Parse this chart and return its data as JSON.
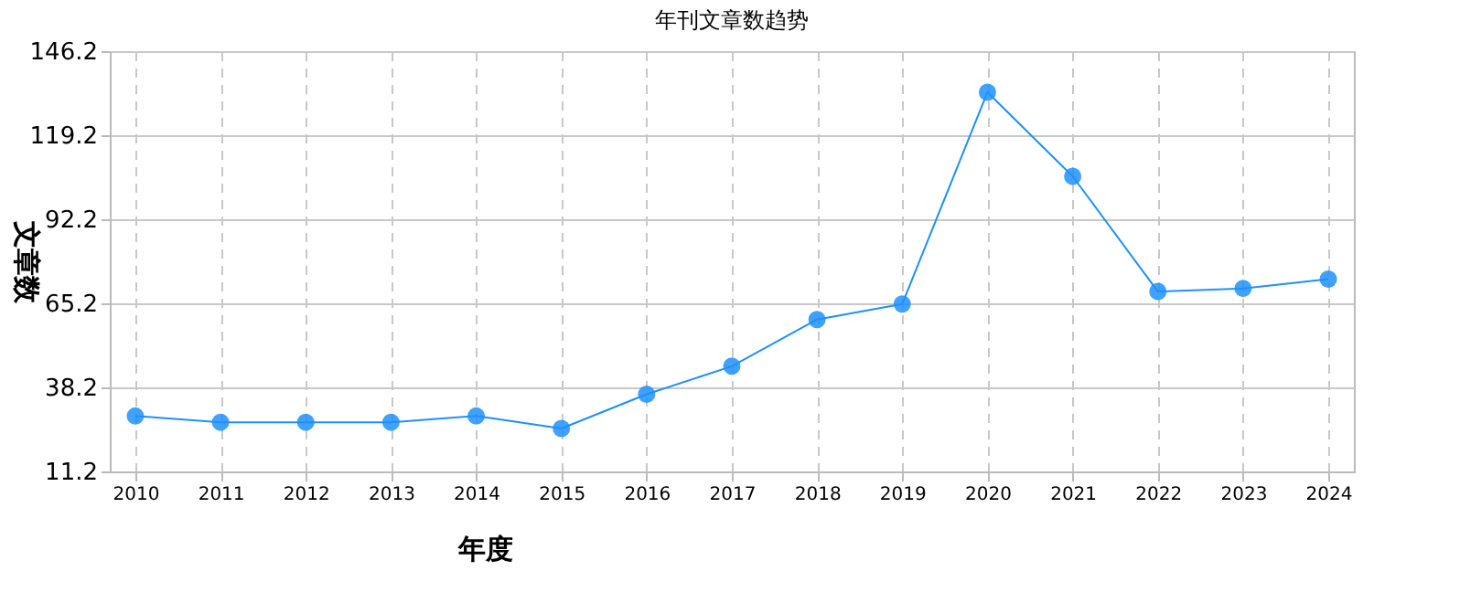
{
  "chart_data": {
    "type": "line",
    "title": "年刊文章数趋势",
    "xlabel": "年度",
    "ylabel": "文章数",
    "categories": [
      "2010",
      "2011",
      "2012",
      "2013",
      "2014",
      "2015",
      "2016",
      "2017",
      "2018",
      "2019",
      "2020",
      "2021",
      "2022",
      "2023",
      "2024"
    ],
    "series": [
      {
        "color": "#1e90ff",
        "values": [
          29,
          27,
          27,
          27,
          29,
          25,
          36,
          45,
          60,
          65,
          133,
          106,
          69,
          70,
          73
        ]
      }
    ],
    "ylim": [
      11.2,
      146.2
    ],
    "yticks": [
      11.2,
      38.2,
      65.2,
      92.2,
      119.2,
      146.2
    ],
    "grid": true,
    "marker": "circle",
    "line_style": "solid",
    "legend": false
  }
}
